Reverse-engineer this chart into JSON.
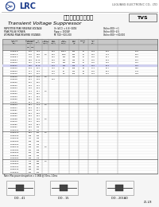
{
  "company": "LRC",
  "company_full": "LUGUANG ELECTRONIC CO., LTD",
  "part_number": "TVS",
  "title_cn": "框流电压抑制二极管",
  "title_en": "Transient Voltage Suppressor",
  "spec_lines": [
    "REPETITIVE PEAK REVERSE VOLTAGE:  Vr  Vr (VDC) = 6.8~500V      Ordine:500~+1",
    "PEAK PULSE POWER:  Pppp = 1500W                                          Ordine:500~4.5",
    "WORKING PEAK REVERSE VOLTAGE:  M: 500~500,000            Ordine:500~+00,000"
  ],
  "rows": [
    [
      "1.5KE6.8",
      "6.45",
      "7.14",
      "",
      "5.00",
      "10000",
      "400",
      "57",
      "1.08",
      "10.5",
      "6.46"
    ],
    [
      "1.5KE7.5",
      "6.75",
      "8.33",
      "1.0",
      "5.00",
      "1000",
      "400",
      "57",
      "1.10",
      "11.3",
      "6.05"
    ],
    [
      "1.5KE8.2",
      "7.38",
      "9.10",
      "",
      "5.00",
      "500",
      "348",
      "57",
      "1.22",
      "12.1",
      "5.54"
    ],
    [
      "1.5KE9.1",
      "8.19",
      "10.10",
      "",
      "5.00",
      "200",
      "313",
      "57",
      "1.30",
      "13.4",
      "5.01"
    ],
    [
      "1.5KE10",
      "9.00",
      "11.10",
      "",
      "6.40",
      "200",
      "293",
      "57",
      "1.37",
      "14.5",
      "4.56"
    ],
    [
      "1.5KE11",
      "9.90",
      "12.10",
      "",
      "1.00",
      "100",
      "249",
      "67",
      "1.55",
      "15.4",
      "4.15"
    ],
    [
      "1.5KE12",
      "10.8",
      "13.2",
      "",
      "1.00",
      "50",
      "228",
      "68",
      "1.74",
      "16.7",
      "3.80"
    ],
    [
      "1.5KE13",
      "11.7",
      "14.3",
      "",
      "1.00",
      "10",
      "214",
      "70",
      "1.90",
      "18.2",
      "3.49"
    ],
    [
      "1.5KE15",
      "13.5",
      "16.5",
      "",
      "1.00",
      "5.0",
      "185",
      "75",
      "2.19",
      "21.2",
      "3.03"
    ],
    [
      "1.5KE16",
      "14.4",
      "17.6",
      "1.0",
      "",
      "",
      "",
      "",
      "",
      "",
      ""
    ],
    [
      "1.5KE18",
      "16.2",
      "19.8",
      "",
      "4.60",
      "",
      "",
      "",
      "",
      "",
      ""
    ],
    [
      "1.5KE20",
      "18.0",
      "22.0",
      "",
      "",
      "",
      "",
      "",
      "",
      "",
      ""
    ],
    [
      "1.5KE22",
      "19.8",
      "24.2",
      "",
      "",
      "",
      "",
      "",
      "",
      "",
      ""
    ],
    [
      "1.5KE24",
      "21.6",
      "26.4",
      "",
      "",
      "",
      "",
      "",
      "",
      "",
      ""
    ],
    [
      "1.5KE27",
      "24.3",
      "29.7",
      "1.0",
      "",
      "",
      "",
      "",
      "",
      "",
      ""
    ],
    [
      "1.5KE30",
      "27.0",
      "33.0",
      "",
      "",
      "",
      "",
      "",
      "",
      "",
      ""
    ],
    [
      "1.5KE33",
      "29.7",
      "36.3",
      "",
      "",
      "",
      "",
      "",
      "",
      "",
      ""
    ],
    [
      "1.5KE36",
      "32.4",
      "39.6",
      "",
      "",
      "",
      "",
      "",
      "",
      "",
      ""
    ],
    [
      "1.5KE39",
      "35.1",
      "42.9",
      "",
      "",
      "",
      "",
      "",
      "",
      "",
      ""
    ],
    [
      "1.5KE43",
      "38.7",
      "47.3",
      "1.0",
      "",
      "",
      "",
      "",
      "",
      "",
      ""
    ],
    [
      "1.5KE47",
      "42.3",
      "51.7",
      "",
      "",
      "",
      "",
      "",
      "",
      "",
      ""
    ],
    [
      "1.5KE51",
      "45.9",
      "56.1",
      "",
      "",
      "",
      "",
      "",
      "",
      "",
      ""
    ],
    [
      "1.5KE56",
      "50.4",
      "61.6",
      "",
      "",
      "",
      "",
      "",
      "",
      "",
      ""
    ],
    [
      "1.5KE62",
      "55.8",
      "68.2",
      "",
      "",
      "",
      "",
      "",
      "",
      "",
      ""
    ],
    [
      "1.5KE68",
      "61.2",
      "74.8",
      "1.0",
      "",
      "",
      "",
      "",
      "",
      "",
      ""
    ],
    [
      "1.5KE75",
      "67.5",
      "82.5",
      "",
      "",
      "",
      "",
      "",
      "",
      "",
      ""
    ],
    [
      "1.5KE82",
      "73.8",
      "90.2",
      "",
      "",
      "",
      "",
      "",
      "",
      "",
      ""
    ],
    [
      "1.5KE91",
      "81.9",
      "100",
      "",
      "",
      "",
      "",
      "",
      "",
      "",
      ""
    ],
    [
      "1.5KE100",
      "90.0",
      "110",
      "",
      "",
      "",
      "",
      "",
      "",
      "",
      ""
    ],
    [
      "1.5KE110",
      "99.0",
      "121",
      "1.0",
      "",
      "",
      "",
      "",
      "",
      "",
      ""
    ],
    [
      "1.5KE120",
      "108",
      "132",
      "",
      "",
      "",
      "",
      "",
      "",
      "",
      ""
    ],
    [
      "1.5KE130",
      "117",
      "143",
      "",
      "",
      "",
      "",
      "",
      "",
      "",
      ""
    ],
    [
      "1.5KE150",
      "135",
      "165",
      "",
      "",
      "",
      "",
      "",
      "",
      "",
      ""
    ],
    [
      "1.5KE160",
      "144",
      "176",
      "",
      "",
      "",
      "",
      "",
      "",
      "",
      ""
    ],
    [
      "1.5KE170",
      "153",
      "187",
      "1.0",
      "",
      "",
      "",
      "",
      "",
      "",
      ""
    ],
    [
      "1.5KE180",
      "162",
      "198",
      "",
      "",
      "",
      "",
      "",
      "",
      "",
      ""
    ],
    [
      "1.5KE200",
      "180",
      "220",
      "",
      "",
      "",
      "",
      "",
      "",
      "",
      ""
    ],
    [
      "1.5KE220",
      "198",
      "242",
      "",
      "",
      "",
      "",
      "",
      "",
      "",
      ""
    ],
    [
      "1.5KE250",
      "225",
      "275",
      "",
      "",
      "",
      "",
      "",
      "",
      "",
      ""
    ],
    [
      "1.5KE300",
      "270",
      "330",
      "1.0",
      "",
      "",
      "",
      "",
      "",
      "",
      ""
    ],
    [
      "1.5KE350",
      "315",
      "385",
      "",
      "",
      "",
      "",
      "",
      "",
      "",
      ""
    ],
    [
      "1.5KE400",
      "360",
      "440",
      "",
      "",
      "",
      "",
      "",
      "",
      "",
      ""
    ],
    [
      "1.5KE440",
      "396",
      "484",
      "",
      "",
      "",
      "",
      "",
      "",
      "",
      ""
    ],
    [
      "1.5KE500",
      "450",
      "550",
      "",
      "",
      "",
      "",
      "",
      "",
      "",
      ""
    ]
  ],
  "highlight_row": 5,
  "section_dividers": [
    9,
    19,
    29,
    39
  ],
  "bg_color": "#f5f5f5",
  "logo_color": "#1a3a8a",
  "table_header_bg": "#c8c8c8",
  "highlight_bg": "#d0d0f0",
  "grid_color": "#aaaaaa"
}
